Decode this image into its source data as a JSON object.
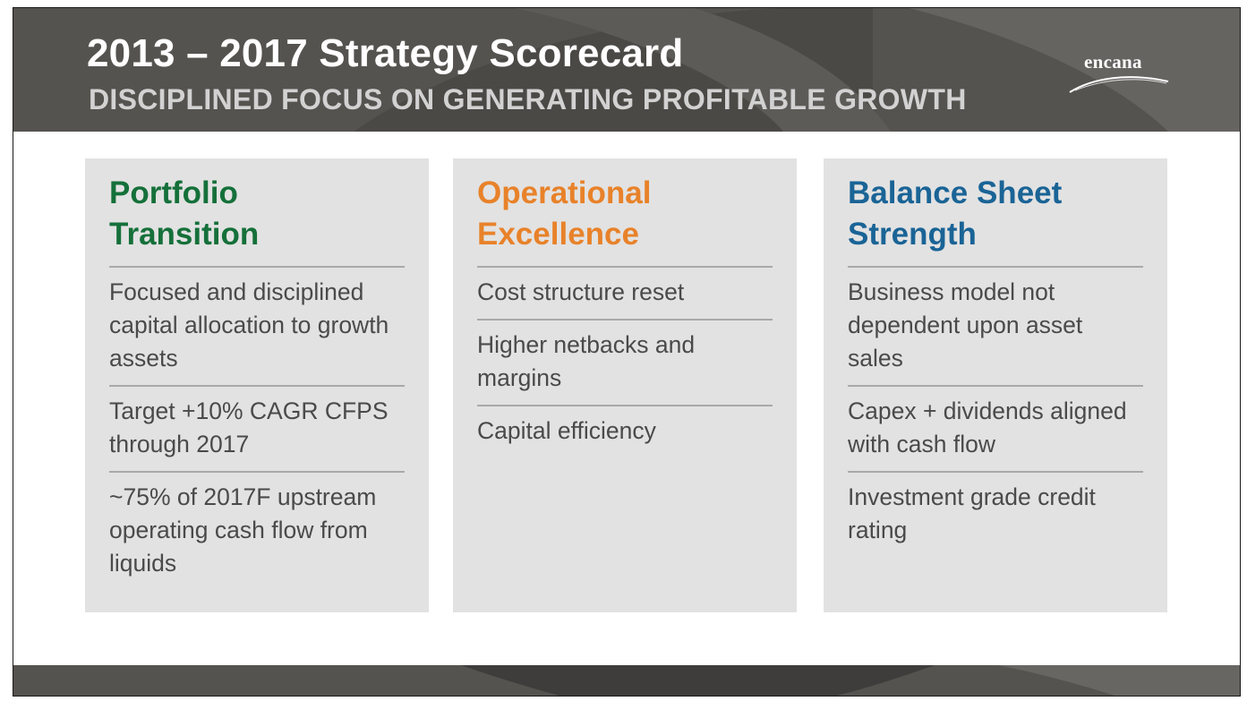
{
  "slide": {
    "title": "2013 – 2017 Strategy Scorecard",
    "subtitle": "DISCIPLINED FOCUS ON GENERATING PROFITABLE GROWTH",
    "logo_text": "encana"
  },
  "colors": {
    "header_bg": "#55534f",
    "panel_bg": "#e2e2e2",
    "portfolio": "#15703a",
    "operational": "#e8822a",
    "balance": "#1a6496",
    "body_text": "#4a4a4a"
  },
  "panels": [
    {
      "heading_line1": "Portfolio",
      "heading_line2": "Transition",
      "items": [
        "Focused and disciplined capital allocation to growth assets",
        "Target +10% CAGR CFPS through 2017",
        "~75% of 2017F upstream operating cash flow from liquids"
      ]
    },
    {
      "heading_line1": "Operational",
      "heading_line2": "Excellence",
      "items": [
        "Cost structure reset",
        "Higher netbacks and margins",
        "Capital efficiency"
      ]
    },
    {
      "heading_line1": "Balance Sheet",
      "heading_line2": "Strength",
      "items": [
        "Business model not dependent upon asset sales",
        "Capex + dividends aligned with cash flow",
        "Investment grade credit rating"
      ]
    }
  ]
}
